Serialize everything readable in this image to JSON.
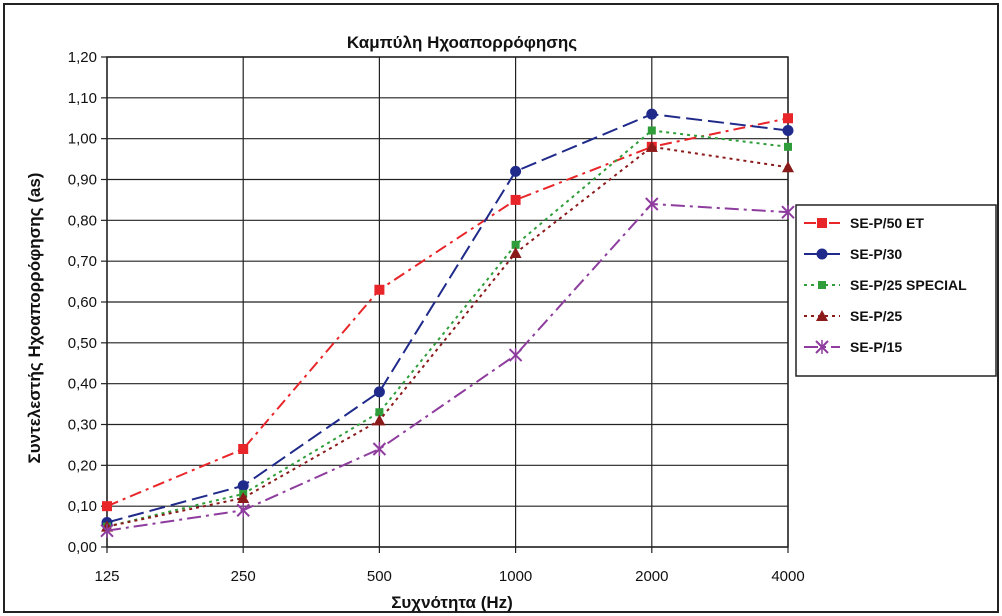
{
  "chart_data": {
    "type": "line",
    "title": "Καμπύλη Ηχοαπορρόφησης",
    "xlabel": "Συχνότητα (Hz)",
    "ylabel": "Συντελεστής Ηχοαπορρόφησης (as)",
    "categories": [
      "125",
      "250",
      "500",
      "1000",
      "2000",
      "4000"
    ],
    "ylim": [
      0,
      1.2
    ],
    "yticks": [
      "0,00",
      "0,10",
      "0,20",
      "0,30",
      "0,40",
      "0,50",
      "0,60",
      "0,70",
      "0,80",
      "0,90",
      "1,00",
      "1,10",
      "1,20"
    ],
    "grid": true,
    "legend_position": "right",
    "series": [
      {
        "name": "SE-P/50 ET",
        "color": "#e8262a",
        "marker": "square",
        "dash": "dash-dot",
        "values": [
          0.1,
          0.24,
          0.63,
          0.85,
          0.98,
          1.05
        ]
      },
      {
        "name": "SE-P/30",
        "color": "#1f2a8a",
        "marker": "circle",
        "dash": "long-dash",
        "values": [
          0.06,
          0.15,
          0.38,
          0.92,
          1.06,
          1.02
        ]
      },
      {
        "name": "SE-P/25 SPECIAL",
        "color": "#2f9e3a",
        "marker": "square-small",
        "dash": "dotted",
        "values": [
          0.05,
          0.13,
          0.33,
          0.74,
          1.02,
          0.98
        ]
      },
      {
        "name": "SE-P/25",
        "color": "#8b1a1a",
        "marker": "triangle",
        "dash": "dotted",
        "values": [
          0.05,
          0.12,
          0.31,
          0.72,
          0.98,
          0.93
        ]
      },
      {
        "name": "SE-P/15",
        "color": "#8e3d9e",
        "marker": "x-star",
        "dash": "long-dash-dot",
        "values": [
          0.04,
          0.09,
          0.24,
          0.47,
          0.84,
          0.82
        ]
      }
    ]
  }
}
